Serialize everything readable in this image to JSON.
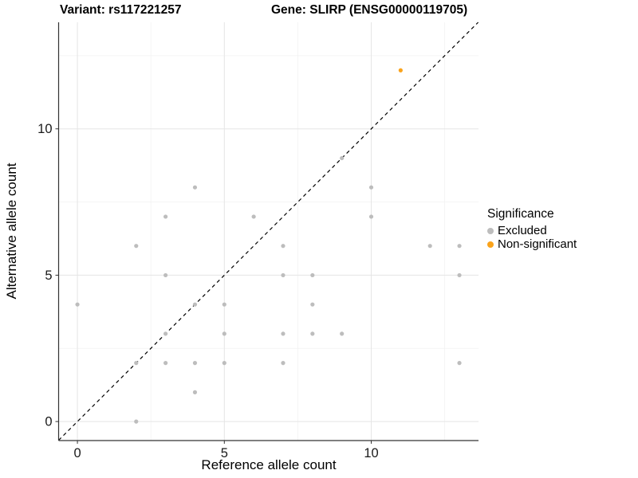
{
  "header": {
    "variant_title": "Variant: rs117221257",
    "gene_title": "Gene: SLIRP (ENSG00000119705)"
  },
  "chart_data": {
    "type": "scatter",
    "xlabel": "Reference allele count",
    "ylabel": "Alternative allele count",
    "xlim": [
      -0.64,
      13.65
    ],
    "ylim": [
      -0.65,
      13.64
    ],
    "x_ticks": [
      0,
      5,
      10
    ],
    "y_ticks": [
      0,
      5,
      10
    ],
    "x_minor_ticks": [
      2.5,
      7.5,
      12.5
    ],
    "y_minor_ticks": [
      2.5,
      7.5,
      12.5
    ],
    "grid": "major and minor gridlines on white background",
    "identity_line": {
      "style": "dashed",
      "equation": "y = x",
      "color": "#000000",
      "from": [
        -0.64,
        -0.64
      ],
      "to": [
        13.64,
        13.64
      ]
    },
    "series": [
      {
        "name": "Excluded",
        "color": "#bdbdbd",
        "points": [
          [
            0,
            4
          ],
          [
            2,
            0
          ],
          [
            2,
            2
          ],
          [
            2,
            6
          ],
          [
            3,
            2
          ],
          [
            3,
            3
          ],
          [
            3,
            5
          ],
          [
            3,
            7
          ],
          [
            4,
            1
          ],
          [
            4,
            2
          ],
          [
            4,
            4
          ],
          [
            4,
            8
          ],
          [
            5,
            2
          ],
          [
            5,
            3
          ],
          [
            5,
            4
          ],
          [
            6,
            7
          ],
          [
            7,
            2
          ],
          [
            7,
            3
          ],
          [
            7,
            5
          ],
          [
            7,
            6
          ],
          [
            8,
            3
          ],
          [
            8,
            4
          ],
          [
            8,
            5
          ],
          [
            9,
            3
          ],
          [
            9,
            9
          ],
          [
            10,
            7
          ],
          [
            10,
            8
          ],
          [
            12,
            6
          ],
          [
            13,
            2
          ],
          [
            13,
            5
          ],
          [
            13,
            6
          ]
        ]
      },
      {
        "name": "Non-significant",
        "color": "#faa31b",
        "points": [
          [
            11,
            12
          ]
        ]
      }
    ],
    "legend": {
      "title": "Significance",
      "position": "right",
      "items": [
        {
          "label": "Excluded",
          "color": "#bdbdbd"
        },
        {
          "label": "Non-significant",
          "color": "#faa31b"
        }
      ]
    },
    "style": {
      "major_grid_color": "#e5e5e5",
      "minor_grid_color": "#f2f2f2",
      "axis_line_color": "#333333",
      "tick_label_color": "#1a1a1a",
      "point_radius": 2.6
    }
  }
}
